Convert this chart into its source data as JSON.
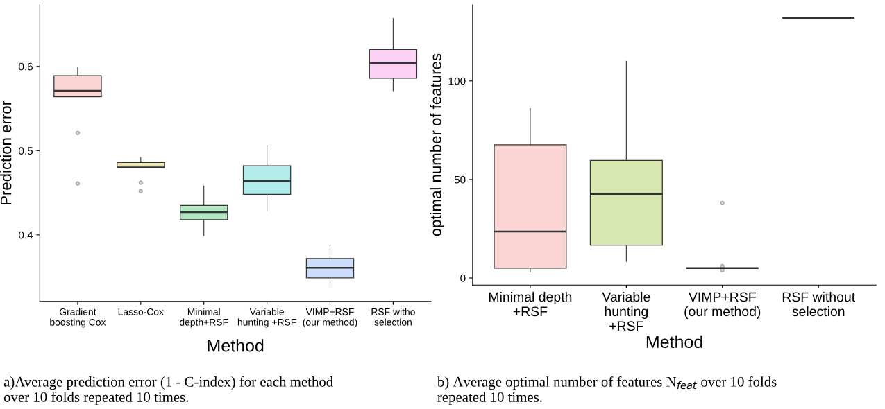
{
  "chart_data": [
    {
      "type": "box",
      "xlabel": "Method",
      "ylabel": "Prediction error",
      "categories": [
        "Gradient\nboosting Cox",
        "Lasso-Cox",
        "Minimal\ndepth+RSF",
        "Variable\nhunting +RSF",
        "VIMP+RSF\n(our method)",
        "RSF witho\nselection"
      ],
      "colors": [
        "#fbd5d3",
        "#ece4b0",
        "#b3e8c3",
        "#b2ecec",
        "#cddcfa",
        "#fbd0f5"
      ],
      "boxes": [
        {
          "low": 0.564,
          "q1": 0.564,
          "median": 0.571,
          "q3": 0.589,
          "high": 0.599,
          "outliers": [
            0.521,
            0.461
          ]
        },
        {
          "low": 0.48,
          "q1": 0.48,
          "median": 0.48,
          "q3": 0.486,
          "high": 0.492,
          "outliers": [
            0.462,
            0.452
          ]
        },
        {
          "low": 0.399,
          "q1": 0.418,
          "median": 0.427,
          "q3": 0.435,
          "high": 0.458
        },
        {
          "low": 0.429,
          "q1": 0.448,
          "median": 0.464,
          "q3": 0.482,
          "high": 0.506
        },
        {
          "low": 0.337,
          "q1": 0.349,
          "median": 0.361,
          "q3": 0.372,
          "high": 0.388
        },
        {
          "low": 0.571,
          "q1": 0.586,
          "median": 0.604,
          "q3": 0.62,
          "high": 0.657
        }
      ],
      "ylim": [
        0.321,
        0.673
      ],
      "yticks": [
        0.4,
        0.5,
        0.6
      ],
      "grid": false,
      "annotations": [
        "a)Average prediction error (1 - C-index) for each method\nover 10 folds repeated 10 times."
      ]
    },
    {
      "type": "box",
      "xlabel": "Method",
      "ylabel": "optimal number of features",
      "categories": [
        "Minimal depth\n+RSF",
        "Variable\nhunting\n+RSF",
        "VIMP+RSF\n(our method)",
        "RSF without\nselection"
      ],
      "colors": [
        "#fbd5d3",
        "#d8e6b0",
        null,
        null
      ],
      "boxes": [
        {
          "low": 3,
          "q1": 5,
          "median": 23.6,
          "q3": 67.6,
          "high": 86
        },
        {
          "low": 8.4,
          "q1": 16.7,
          "median": 42.7,
          "q3": 59.7,
          "high": 110
        },
        {
          "low": 5,
          "q1": 5,
          "median": 5,
          "q3": 5,
          "high": 5,
          "outliers": [
            38,
            6,
            4
          ]
        },
        {
          "low": 132,
          "q1": 132,
          "median": 132,
          "q3": 132,
          "high": 132
        }
      ],
      "ylim": [
        -3.6,
        138.6
      ],
      "yticks": [
        0,
        50,
        100
      ],
      "grid": false,
      "annotations": [
        "b) Average optimal number of features N$_{feat}$ over 10 folds\nrepeated 10 times."
      ]
    }
  ]
}
